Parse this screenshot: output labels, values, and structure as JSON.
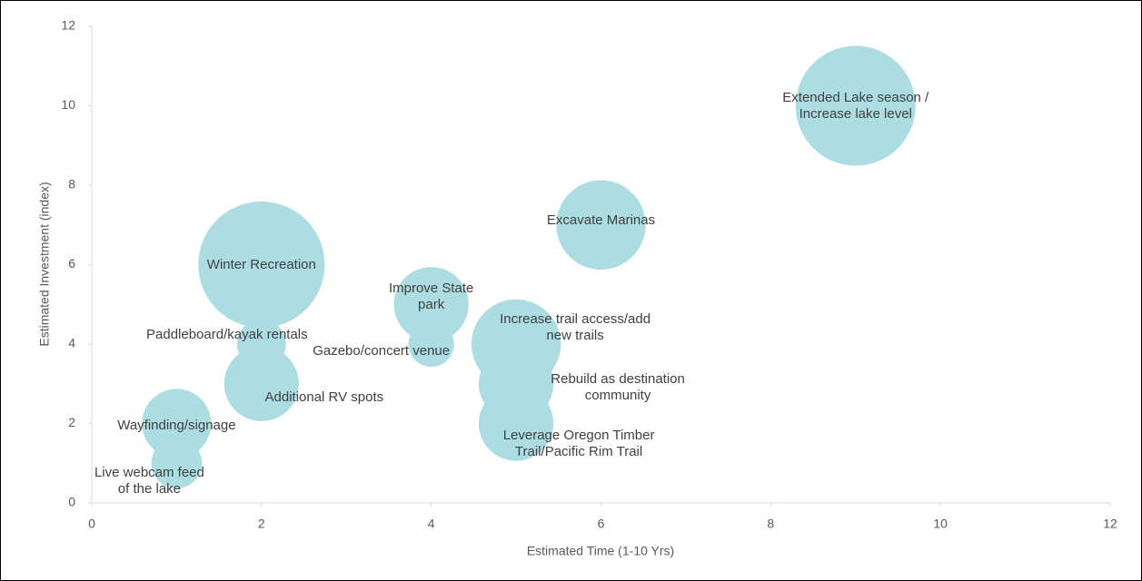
{
  "chart_data": {
    "type": "bubble",
    "xlabel": "Estimated Time (1-10 Yrs)",
    "ylabel": "Estimated Investment (index)",
    "xlim": [
      0,
      12
    ],
    "xticks": [
      0,
      2,
      4,
      6,
      8,
      10,
      12
    ],
    "ylim": [
      0,
      12
    ],
    "yticks": [
      0,
      2,
      4,
      6,
      8,
      10,
      12
    ],
    "color": "#abdde2",
    "labels": [
      "Extended Lake season /\nIncrease lake level",
      "Excavate Marinas",
      "Winter Recreation",
      "Improve State\npark",
      "Paddleboard/kayak rentals",
      "Gazebo/concert venue",
      "Additional RV spots",
      "Increase trail access/add\nnew trails",
      "Rebuild as destination\ncommunity",
      "Leverage Oregon Timber\nTrail/Pacific Rim Trail",
      "Wayfinding/signage",
      "Live webcam feed\nof the lake"
    ],
    "x": [
      9,
      6,
      2,
      4,
      2,
      4,
      2,
      5,
      5,
      5,
      1,
      1
    ],
    "y": [
      10,
      7,
      6,
      5,
      4,
      4,
      3,
      4,
      3,
      2,
      2,
      1
    ],
    "size": [
      9,
      5,
      10,
      3.5,
      1.5,
      1.3,
      3.5,
      5,
      3.5,
      3.5,
      3,
      1.6
    ]
  }
}
